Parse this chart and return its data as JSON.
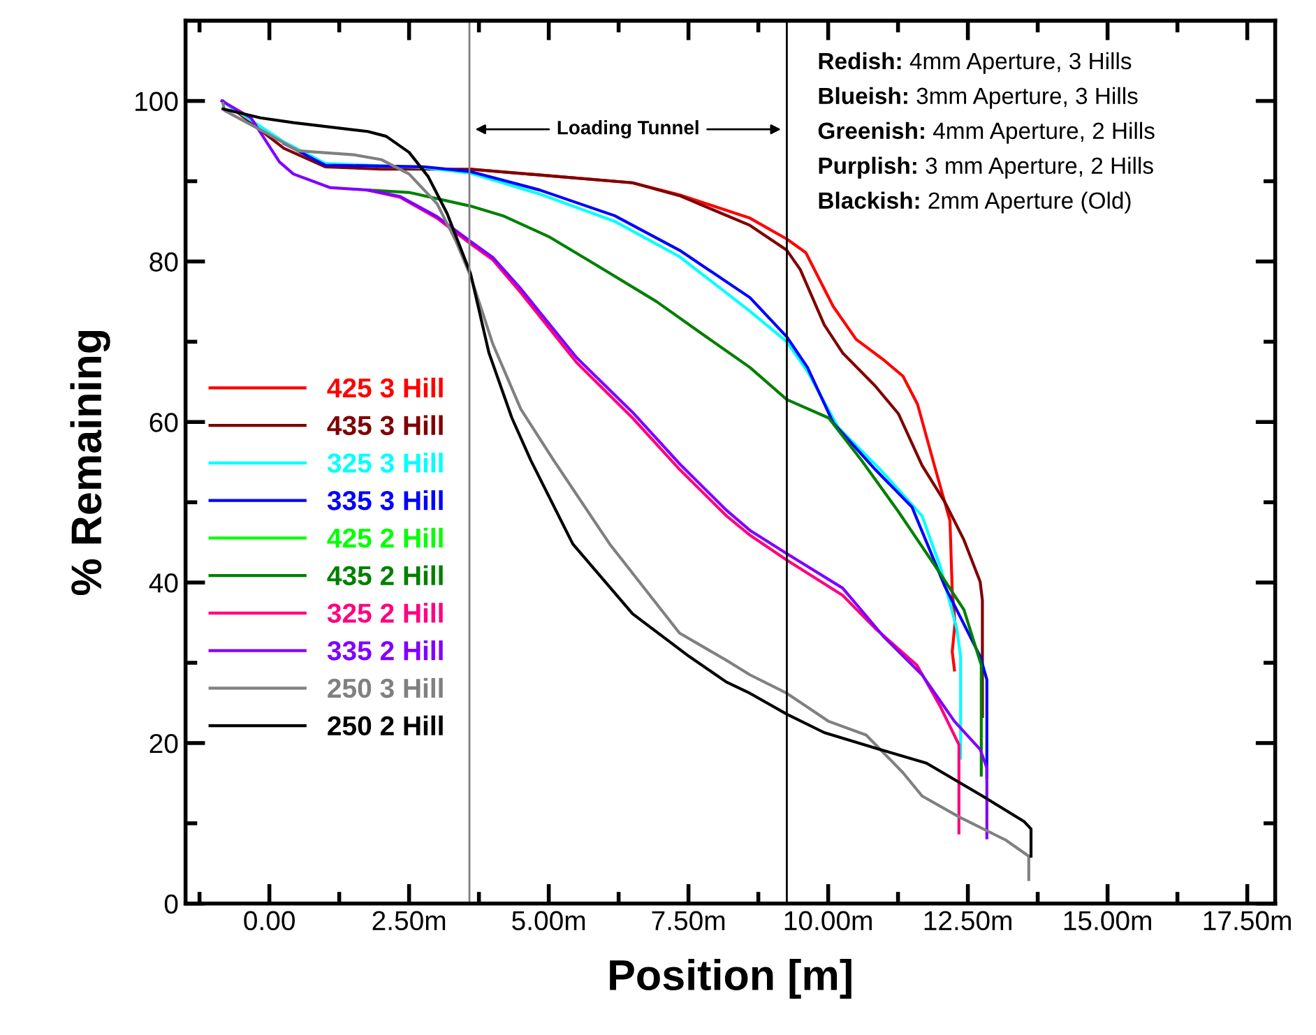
{
  "chart_data": {
    "type": "line",
    "xlabel": "Position [m]",
    "ylabel": "% Remaining",
    "xlim": [
      -1.5,
      18
    ],
    "ylim": [
      0,
      110
    ],
    "xticks": [
      {
        "value": -1.25,
        "label": null
      },
      {
        "value": 0,
        "label": "0.00"
      },
      {
        "value": 1.25,
        "label": null
      },
      {
        "value": 2.5,
        "label": "2.50m"
      },
      {
        "value": 3.75,
        "label": null
      },
      {
        "value": 5,
        "label": "5.00m"
      },
      {
        "value": 6.25,
        "label": null
      },
      {
        "value": 7.5,
        "label": "7.50m"
      },
      {
        "value": 8.75,
        "label": null
      },
      {
        "value": 10,
        "label": "10.00m"
      },
      {
        "value": 11.25,
        "label": null
      },
      {
        "value": 12.5,
        "label": "12.50m"
      },
      {
        "value": 13.75,
        "label": null
      },
      {
        "value": 15,
        "label": "15.00m"
      },
      {
        "value": 16.25,
        "label": null
      },
      {
        "value": 17.5,
        "label": "17.50m"
      }
    ],
    "yticks": [
      0,
      {
        "value": 10,
        "label": null
      },
      20,
      {
        "value": 30,
        "label": null
      },
      40,
      {
        "value": 50,
        "label": null
      },
      60,
      {
        "value": 70,
        "label": null
      },
      80,
      {
        "value": 90,
        "label": null
      },
      100
    ],
    "grid": false,
    "legend": "left",
    "line_style": "solid",
    "marker": "none",
    "ref_lines": [
      {
        "axis": "x",
        "value": 3.58,
        "label": null,
        "color": "#808080"
      },
      {
        "axis": "x",
        "value": 9.26,
        "label": null,
        "color": "#000000"
      }
    ],
    "annotations": [
      "Loading Tunnel",
      "Redish: 4mm Aperture, 3 Hills",
      "Blueish: 3mm Aperture, 3 Hills",
      "Greenish: 4mm Aperture, 2 Hills",
      "Purplish: 3 mm Aperture, 2 Hills",
      "Blackish: 2mm Aperture (Old)"
    ],
    "series": [
      {
        "name": "425 3 Hill",
        "color": "#ff0000",
        "x": [
          3.6,
          6.5,
          7.34,
          8.6,
          9.26,
          9.6,
          10.09,
          10.5,
          11.0,
          11.34,
          11.6,
          11.9,
          12.18,
          12.22,
          12.27,
          12.22,
          12.26
        ],
        "values": [
          91.5,
          89.8,
          88.3,
          85.4,
          82.8,
          81.1,
          74.4,
          70.3,
          67.7,
          65.7,
          62.2,
          54.6,
          47.7,
          39,
          34.9,
          31.4,
          29.1
        ]
      },
      {
        "name": "435 3 Hill",
        "color": "#800000",
        "x": [
          -0.83,
          0.26,
          1.0,
          2.0,
          3.6,
          6.5,
          7.34,
          8.6,
          9.26,
          9.5,
          9.93,
          10.26,
          10.84,
          11.26,
          11.68,
          12.09,
          12.43,
          12.72,
          12.76,
          12.76
        ],
        "values": [
          100,
          94.1,
          91.8,
          91.5,
          91.5,
          89.8,
          88.2,
          84.5,
          81.4,
          79.0,
          72.1,
          68.6,
          64.5,
          61.0,
          54.6,
          50,
          45.3,
          40.1,
          37.8,
          23.3
        ]
      },
      {
        "name": "325 3 Hill",
        "color": "#00ffff",
        "x": [
          -0.85,
          0.26,
          1.0,
          2.76,
          3.6,
          4.84,
          6.18,
          7.34,
          8.6,
          9.26,
          9.63,
          10.18,
          10.93,
          11.68,
          12.01,
          12.3,
          12.37,
          12.37
        ],
        "values": [
          100,
          94.9,
          92.2,
          91.7,
          91.0,
          88.4,
          85.0,
          80.6,
          73.8,
          70.0,
          66.3,
          59.3,
          54.1,
          48.3,
          41.9,
          34.3,
          30.8,
          18.1
        ]
      },
      {
        "name": "335 3 Hill",
        "color": "#0000ff",
        "x": [
          0.26,
          1.0,
          2.76,
          3.6,
          4.84,
          6.18,
          7.34,
          8.6,
          9.26,
          9.63,
          10.09,
          10.84,
          11.5,
          12.09,
          12.72,
          12.84,
          12.84
        ],
        "values": [
          94.7,
          92.0,
          91.8,
          91.2,
          88.9,
          85.7,
          81.4,
          75.5,
          70.6,
          66.8,
          59.9,
          54.1,
          49.4,
          39.5,
          30.8,
          27.9,
          15.7
        ]
      },
      {
        "name": "425 2 Hill",
        "color": "#00ff00"
      },
      {
        "name": "435 2 Hill",
        "color": "#008000",
        "x": [
          1.76,
          2.5,
          3.6,
          4.18,
          5.0,
          5.84,
          6.93,
          7.76,
          8.6,
          9.26,
          10.01,
          10.6,
          11.26,
          11.93,
          12.43,
          12.74,
          12.74
        ],
        "values": [
          88.9,
          88.6,
          86.9,
          85.7,
          83.1,
          79.6,
          75.0,
          70.9,
          66.8,
          62.8,
          60.5,
          55.2,
          48.8,
          41.9,
          36.6,
          29.7,
          16.0
        ]
      },
      {
        "name": "325 2 Hill",
        "color": "#ff0080",
        "x": [
          1.76,
          2.34,
          3.0,
          3.6,
          4.0,
          4.5,
          5.5,
          6.5,
          7.34,
          8.18,
          8.6,
          9.26,
          10.26,
          10.84,
          11.59,
          12.01,
          12.34,
          12.34
        ],
        "values": [
          88.9,
          88.0,
          85.4,
          82.2,
          80.2,
          76.1,
          67.4,
          60.5,
          54.1,
          48.3,
          45.9,
          42.8,
          38.4,
          34.3,
          29.7,
          24.5,
          19.8,
          8.8
        ]
      },
      {
        "name": "335 2 Hill",
        "color": "#8000ff",
        "x": [
          -0.85,
          -0.33,
          0.18,
          0.43,
          1.09,
          1.76,
          2.34,
          3.0,
          3.6,
          4.0,
          4.5,
          5.5,
          6.5,
          7.34,
          8.18,
          8.6,
          9.26,
          10.26,
          11.0,
          11.68,
          12.26,
          12.72,
          12.84,
          12.84
        ],
        "values": [
          100,
          97.9,
          92.4,
          90.9,
          89.2,
          88.9,
          88.1,
          85.6,
          82.5,
          80.5,
          76.6,
          68.0,
          61.2,
          54.8,
          49.0,
          46.5,
          43.6,
          39.3,
          33.2,
          28.5,
          22.7,
          19.2,
          16.9,
          8.2
        ]
      },
      {
        "name": "250 3 Hill",
        "color": "#808080",
        "x": [
          -0.83,
          -0.8,
          -0.16,
          0.51,
          1.51,
          2.0,
          2.5,
          3.0,
          3.34,
          3.6,
          4.0,
          4.5,
          5.09,
          6.09,
          7.34,
          8.18,
          8.6,
          9.26,
          10.01,
          10.68,
          11.34,
          11.68,
          12.34,
          13.18,
          13.59,
          13.59
        ],
        "values": [
          99.7,
          98.8,
          96.4,
          93.8,
          93.3,
          92.7,
          90.9,
          87.2,
          82.5,
          78.2,
          69.7,
          61.6,
          55.2,
          44.8,
          33.7,
          30.3,
          28.5,
          26.2,
          22.7,
          21.0,
          16.3,
          13.4,
          10.8,
          7.9,
          5.9,
          3.0
        ]
      },
      {
        "name": "250 2 Hill",
        "color": "#000000",
        "x": [
          -0.83,
          -0.16,
          0.43,
          1.76,
          2.09,
          2.5,
          2.84,
          3.18,
          3.6,
          3.93,
          4.34,
          4.68,
          5.43,
          6.5,
          7.51,
          8.18,
          8.6,
          9.26,
          9.93,
          10.93,
          11.76,
          12.76,
          13.51,
          13.63,
          13.63
        ],
        "values": [
          99.0,
          97.9,
          97.3,
          96.2,
          95.6,
          93.6,
          90.6,
          86.0,
          78.5,
          68.6,
          60.5,
          55.2,
          44.8,
          36.1,
          30.8,
          27.6,
          26.2,
          23.6,
          21.3,
          19.2,
          17.5,
          13.4,
          10.2,
          9.3,
          5.9
        ]
      }
    ]
  }
}
